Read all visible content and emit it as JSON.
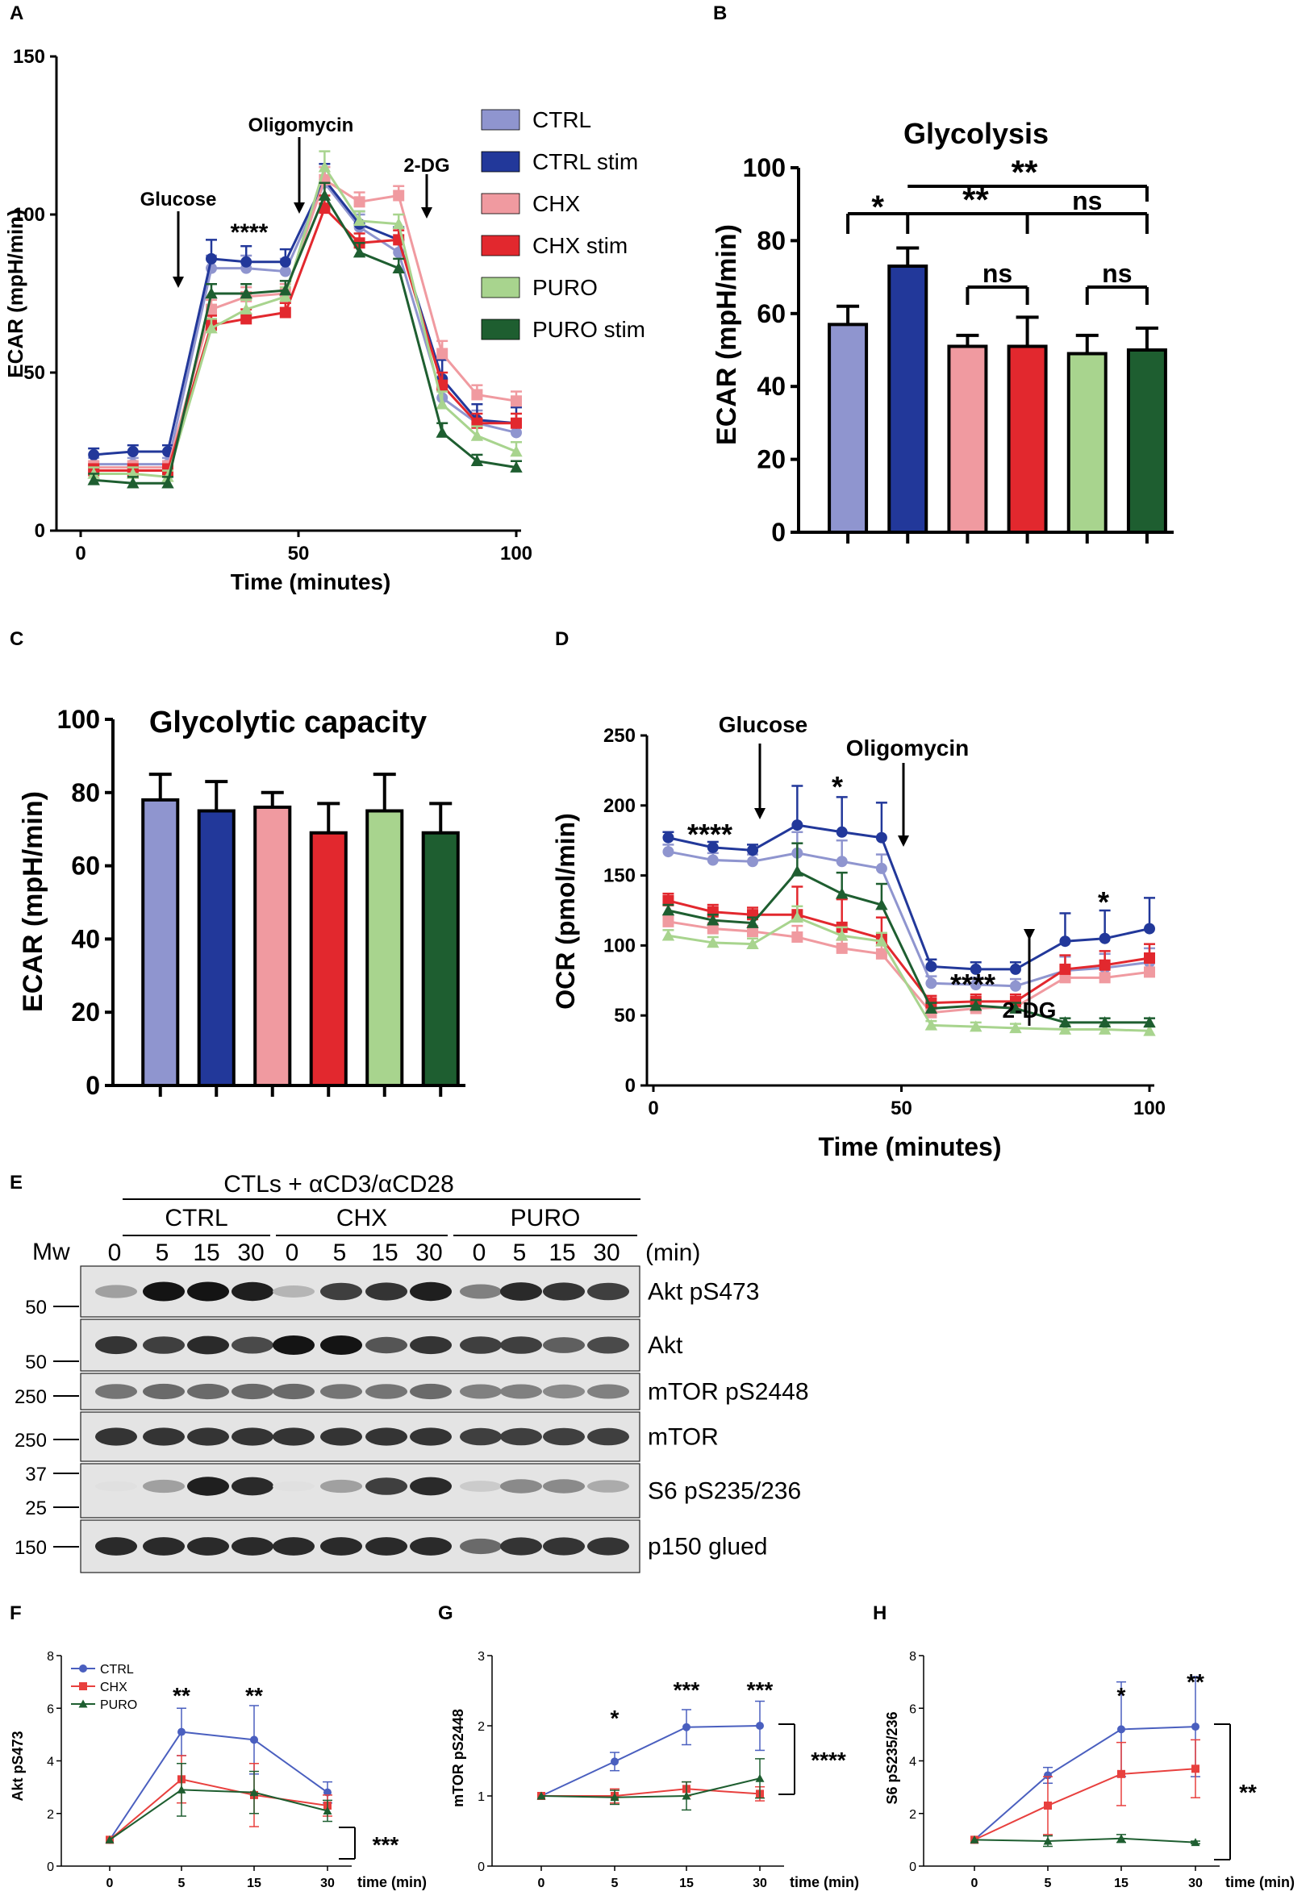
{
  "colors": {
    "CTRL": "#8f95cf",
    "CTRL stim": "#22389a",
    "CHX": "#f09aa0",
    "CHX stim": "#e2282e",
    "PURO": "#a8d48e",
    "PURO stim": "#1e5e30",
    "f_ctrl": "#4a5fbf",
    "f_chx": "#e8403e",
    "f_puro": "#1e5e30"
  },
  "chart_data": [
    {
      "panel": "A",
      "type": "line",
      "xlabel": "Time (minutes)",
      "ylabel": "ECAR (mpH/min)",
      "xlim": [
        0,
        100
      ],
      "ylim": [
        0,
        150
      ],
      "xticks": [
        0,
        50,
        100
      ],
      "yticks": [
        0,
        50,
        100,
        150
      ],
      "x": [
        3,
        12,
        20,
        30,
        38,
        47,
        56,
        64,
        73,
        83,
        91,
        100
      ],
      "series": [
        {
          "name": "CTRL",
          "values": [
            21,
            21,
            21,
            83,
            83,
            82,
            110,
            96,
            88,
            42,
            34,
            31
          ],
          "err": [
            2,
            2,
            2,
            4,
            4,
            4,
            5,
            4,
            4,
            6,
            4,
            4
          ]
        },
        {
          "name": "CTRL stim",
          "values": [
            24,
            25,
            25,
            86,
            85,
            85,
            111,
            97,
            92,
            48,
            35,
            34
          ],
          "err": [
            2,
            2,
            2,
            6,
            5,
            4,
            5,
            4,
            4,
            6,
            5,
            5
          ]
        },
        {
          "name": "CHX",
          "values": [
            20,
            20,
            20,
            70,
            74,
            75,
            111,
            104,
            106,
            56,
            43,
            41
          ],
          "err": [
            2,
            2,
            2,
            3,
            3,
            3,
            4,
            3,
            3,
            4,
            3,
            3
          ]
        },
        {
          "name": "CHX stim",
          "values": [
            19,
            19,
            19,
            65,
            67,
            69,
            102,
            91,
            92,
            46,
            34,
            34
          ],
          "err": [
            2,
            2,
            2,
            3,
            3,
            3,
            4,
            3,
            3,
            4,
            3,
            3
          ]
        },
        {
          "name": "PURO",
          "values": [
            18,
            18,
            17,
            64,
            70,
            74,
            115,
            98,
            97,
            40,
            30,
            25
          ],
          "err": [
            2,
            2,
            2,
            3,
            3,
            3,
            5,
            3,
            3,
            4,
            3,
            3
          ]
        },
        {
          "name": "PURO stim",
          "values": [
            16,
            15,
            15,
            75,
            75,
            76,
            106,
            88,
            83,
            31,
            22,
            20
          ],
          "err": [
            2,
            2,
            2,
            3,
            3,
            3,
            4,
            3,
            3,
            3,
            2,
            2
          ]
        }
      ],
      "legend": [
        "CTRL",
        "CTRL stim",
        "CHX",
        "CHX stim",
        "PURO",
        "PURO stim"
      ],
      "annotations": {
        "glucose": "Glucose",
        "oligomycin": "Oligomycin",
        "twodg": "2-DG",
        "sig": "****"
      }
    },
    {
      "panel": "B",
      "type": "bar",
      "title": "Glycolysis",
      "ylabel": "ECAR (mpH/min)",
      "ylim": [
        0,
        100
      ],
      "yticks": [
        0,
        20,
        40,
        60,
        80,
        100
      ],
      "categories": [
        "CTRL",
        "CTRL stim",
        "CHX",
        "CHX stim",
        "PURO",
        "PURO stim"
      ],
      "values": [
        57,
        73,
        51,
        51,
        49,
        50
      ],
      "err": [
        5,
        5,
        3,
        8,
        5,
        6
      ],
      "annotations": {
        "s1": "*",
        "s2": "**",
        "s3": "ns",
        "s4": "**",
        "ns1": "ns",
        "ns2": "ns"
      }
    },
    {
      "panel": "C",
      "type": "bar",
      "title": "Glycolytic capacity",
      "ylabel": "ECAR (mpH/min)",
      "ylim": [
        0,
        100
      ],
      "yticks": [
        0,
        20,
        40,
        60,
        80,
        100
      ],
      "categories": [
        "CTRL",
        "CTRL stim",
        "CHX",
        "CHX stim",
        "PURO",
        "PURO stim"
      ],
      "values": [
        78,
        75,
        76,
        69,
        75,
        69
      ],
      "err": [
        7,
        8,
        4,
        8,
        10,
        8
      ]
    },
    {
      "panel": "D",
      "type": "line",
      "xlabel": "Time (minutes)",
      "ylabel": "OCR (pmol/min)",
      "xlim": [
        0,
        100
      ],
      "ylim": [
        0,
        250
      ],
      "xticks": [
        0,
        50,
        100
      ],
      "yticks": [
        0,
        50,
        100,
        150,
        200,
        250
      ],
      "x": [
        3,
        12,
        20,
        29,
        38,
        46,
        56,
        65,
        73,
        83,
        91,
        100
      ],
      "series": [
        {
          "name": "CTRL",
          "values": [
            167,
            161,
            160,
            166,
            160,
            155,
            73,
            72,
            71,
            82,
            84,
            88
          ],
          "err": [
            5,
            5,
            5,
            15,
            15,
            10,
            5,
            5,
            5,
            10,
            10,
            10
          ]
        },
        {
          "name": "CTRL stim",
          "values": [
            177,
            170,
            168,
            186,
            181,
            177,
            85,
            83,
            83,
            103,
            105,
            112
          ],
          "err": [
            4,
            4,
            4,
            28,
            25,
            25,
            5,
            5,
            5,
            20,
            20,
            22
          ]
        },
        {
          "name": "CHX",
          "values": [
            117,
            112,
            110,
            106,
            98,
            94,
            52,
            55,
            56,
            77,
            77,
            81
          ],
          "err": [
            4,
            4,
            4,
            8,
            6,
            6,
            4,
            4,
            4,
            8,
            8,
            8
          ]
        },
        {
          "name": "CHX stim",
          "values": [
            132,
            124,
            122,
            122,
            113,
            105,
            59,
            60,
            60,
            83,
            86,
            91
          ],
          "err": [
            5,
            5,
            5,
            20,
            20,
            15,
            5,
            5,
            5,
            10,
            10,
            10
          ]
        },
        {
          "name": "PURO",
          "values": [
            107,
            102,
            101,
            120,
            107,
            103,
            43,
            42,
            41,
            40,
            40,
            39
          ],
          "err": [
            4,
            4,
            4,
            8,
            6,
            6,
            3,
            3,
            3,
            3,
            3,
            3
          ]
        },
        {
          "name": "PURO stim",
          "values": [
            125,
            118,
            116,
            153,
            137,
            129,
            55,
            57,
            55,
            45,
            45,
            45
          ],
          "err": [
            4,
            4,
            4,
            20,
            15,
            15,
            4,
            4,
            4,
            3,
            3,
            3
          ]
        }
      ],
      "annotations": {
        "glucose": "Glucose",
        "oligomycin": "Oligomycin",
        "twodg": "2-DG",
        "sig1": "****",
        "sig2": "*",
        "sig3": "****",
        "sig4": "*"
      }
    },
    {
      "panel": "F",
      "type": "line",
      "xlabel": "time (min)",
      "ylabel": "Akt pS473",
      "categories": [
        "0",
        "5",
        "15",
        "30"
      ],
      "ylim": [
        0,
        8
      ],
      "yticks": [
        0,
        2,
        4,
        6,
        8
      ],
      "series": [
        {
          "name": "CTRL",
          "values": [
            1,
            5.1,
            4.8,
            2.8
          ],
          "err": [
            0,
            0.9,
            1.3,
            0.4
          ]
        },
        {
          "name": "CHX",
          "values": [
            1,
            3.3,
            2.7,
            2.3
          ],
          "err": [
            0,
            0.9,
            1.2,
            0.4
          ]
        },
        {
          "name": "PURO",
          "values": [
            1,
            2.9,
            2.8,
            2.1
          ],
          "err": [
            0,
            1.0,
            0.8,
            0.4
          ]
        }
      ],
      "legend": [
        "CTRL",
        "CHX",
        "PURO"
      ],
      "annotations": {
        "t5": "**",
        "t15": "**",
        "bracket": "***"
      }
    },
    {
      "panel": "G",
      "type": "line",
      "xlabel": "time (min)",
      "ylabel": "mTOR pS2448",
      "categories": [
        "0",
        "5",
        "15",
        "30"
      ],
      "ylim": [
        0,
        3
      ],
      "yticks": [
        0,
        1,
        2,
        3
      ],
      "series": [
        {
          "name": "CTRL",
          "values": [
            1,
            1.49,
            1.98,
            2.0
          ],
          "err": [
            0,
            0.13,
            0.25,
            0.35
          ]
        },
        {
          "name": "CHX",
          "values": [
            1,
            1.0,
            1.1,
            1.03
          ],
          "err": [
            0,
            0.1,
            0.1,
            0.1
          ]
        },
        {
          "name": "PURO",
          "values": [
            1,
            0.98,
            1.0,
            1.25
          ],
          "err": [
            0,
            0.1,
            0.2,
            0.28
          ]
        }
      ],
      "annotations": {
        "t5": "*",
        "t15": "***",
        "t30": "***",
        "bracket": "****"
      }
    },
    {
      "panel": "H",
      "type": "line",
      "xlabel": "time (min)",
      "ylabel": "S6 pS235/236",
      "categories": [
        "0",
        "5",
        "15",
        "30"
      ],
      "ylim": [
        0,
        8
      ],
      "yticks": [
        0,
        2,
        4,
        6,
        8
      ],
      "series": [
        {
          "name": "CTRL",
          "values": [
            1,
            3.45,
            5.2,
            5.3
          ],
          "err": [
            0,
            0.3,
            1.8,
            1.9
          ]
        },
        {
          "name": "CHX",
          "values": [
            1,
            2.3,
            3.5,
            3.7
          ],
          "err": [
            0,
            1.1,
            1.2,
            1.1
          ]
        },
        {
          "name": "PURO",
          "values": [
            1,
            0.95,
            1.05,
            0.9
          ],
          "err": [
            0,
            0.2,
            0.15,
            0.05
          ]
        }
      ],
      "annotations": {
        "t15": "*",
        "t30": "**",
        "bracket": "**"
      }
    }
  ],
  "panels": {
    "A": "A",
    "B": "B",
    "C": "C",
    "D": "D",
    "E": "E",
    "F": "F",
    "G": "G",
    "H": "H"
  },
  "western": {
    "header": "CTLs + αCD3/αCD28",
    "groups": [
      "CTRL",
      "CHX",
      "PURO"
    ],
    "mw_label": "Mw",
    "times": [
      "0",
      "5",
      "15",
      "30"
    ],
    "unit": "(min)",
    "bands": [
      {
        "label": "Akt pS473",
        "markers": [
          "50"
        ],
        "intensity": [
          0.35,
          1.0,
          1.0,
          0.95,
          0.25,
          0.8,
          0.85,
          0.95,
          0.5,
          0.9,
          0.85,
          0.8
        ]
      },
      {
        "label": "Akt",
        "markers": [
          "50"
        ],
        "intensity": [
          0.85,
          0.8,
          0.9,
          0.75,
          1.0,
          1.0,
          0.7,
          0.85,
          0.8,
          0.8,
          0.65,
          0.75
        ]
      },
      {
        "label": "mTOR pS2448",
        "markers": [
          "250"
        ],
        "intensity": [
          0.55,
          0.6,
          0.6,
          0.6,
          0.6,
          0.55,
          0.55,
          0.6,
          0.5,
          0.5,
          0.45,
          0.5
        ]
      },
      {
        "label": "mTOR",
        "markers": [
          "250"
        ],
        "intensity": [
          0.85,
          0.85,
          0.85,
          0.85,
          0.85,
          0.85,
          0.85,
          0.85,
          0.8,
          0.8,
          0.8,
          0.8
        ]
      },
      {
        "label": "S6 pS235/236",
        "markers": [
          "37",
          "25"
        ],
        "intensity": [
          0.05,
          0.35,
          0.95,
          0.9,
          0.05,
          0.35,
          0.8,
          0.9,
          0.15,
          0.45,
          0.45,
          0.3
        ]
      },
      {
        "label": "p150 glued",
        "markers": [
          "150"
        ],
        "intensity": [
          0.9,
          0.9,
          0.9,
          0.9,
          0.9,
          0.9,
          0.9,
          0.9,
          0.6,
          0.85,
          0.85,
          0.85
        ]
      }
    ]
  }
}
